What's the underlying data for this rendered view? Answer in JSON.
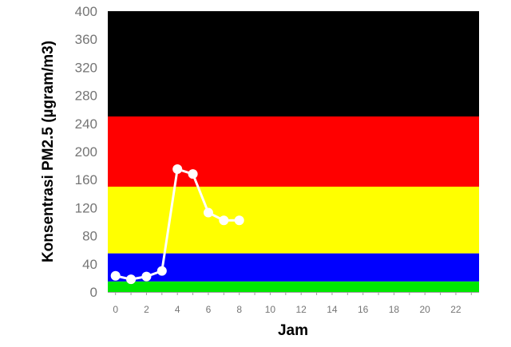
{
  "chart_data": {
    "type": "line",
    "xlabel": "Jam",
    "ylabel": "Konsentrasi PM2.5 (µgram/m3)",
    "xlim": [
      -0.5,
      23.5
    ],
    "ylim": [
      0,
      400
    ],
    "x_ticks": [
      "0",
      "2",
      "4",
      "6",
      "8",
      "10",
      "12",
      "14",
      "16",
      "18",
      "20",
      "22"
    ],
    "y_ticks": [
      "0",
      "40",
      "80",
      "120",
      "160",
      "200",
      "240",
      "280",
      "320",
      "360",
      "400"
    ],
    "grid": false,
    "legend": "none",
    "bands": [
      {
        "from": 0,
        "to": 15,
        "color": "#00e800"
      },
      {
        "from": 15,
        "to": 55,
        "color": "#0000ff"
      },
      {
        "from": 55,
        "to": 150,
        "color": "#ffff00"
      },
      {
        "from": 150,
        "to": 250,
        "color": "#ff0000"
      },
      {
        "from": 250,
        "to": 400,
        "color": "#000000"
      }
    ],
    "series": [
      {
        "color": "#ffffff",
        "x": [
          0,
          1,
          2,
          3,
          4,
          5,
          6,
          7,
          8
        ],
        "values": [
          23,
          18,
          22,
          30,
          175,
          168,
          113,
          102,
          102
        ]
      }
    ]
  }
}
